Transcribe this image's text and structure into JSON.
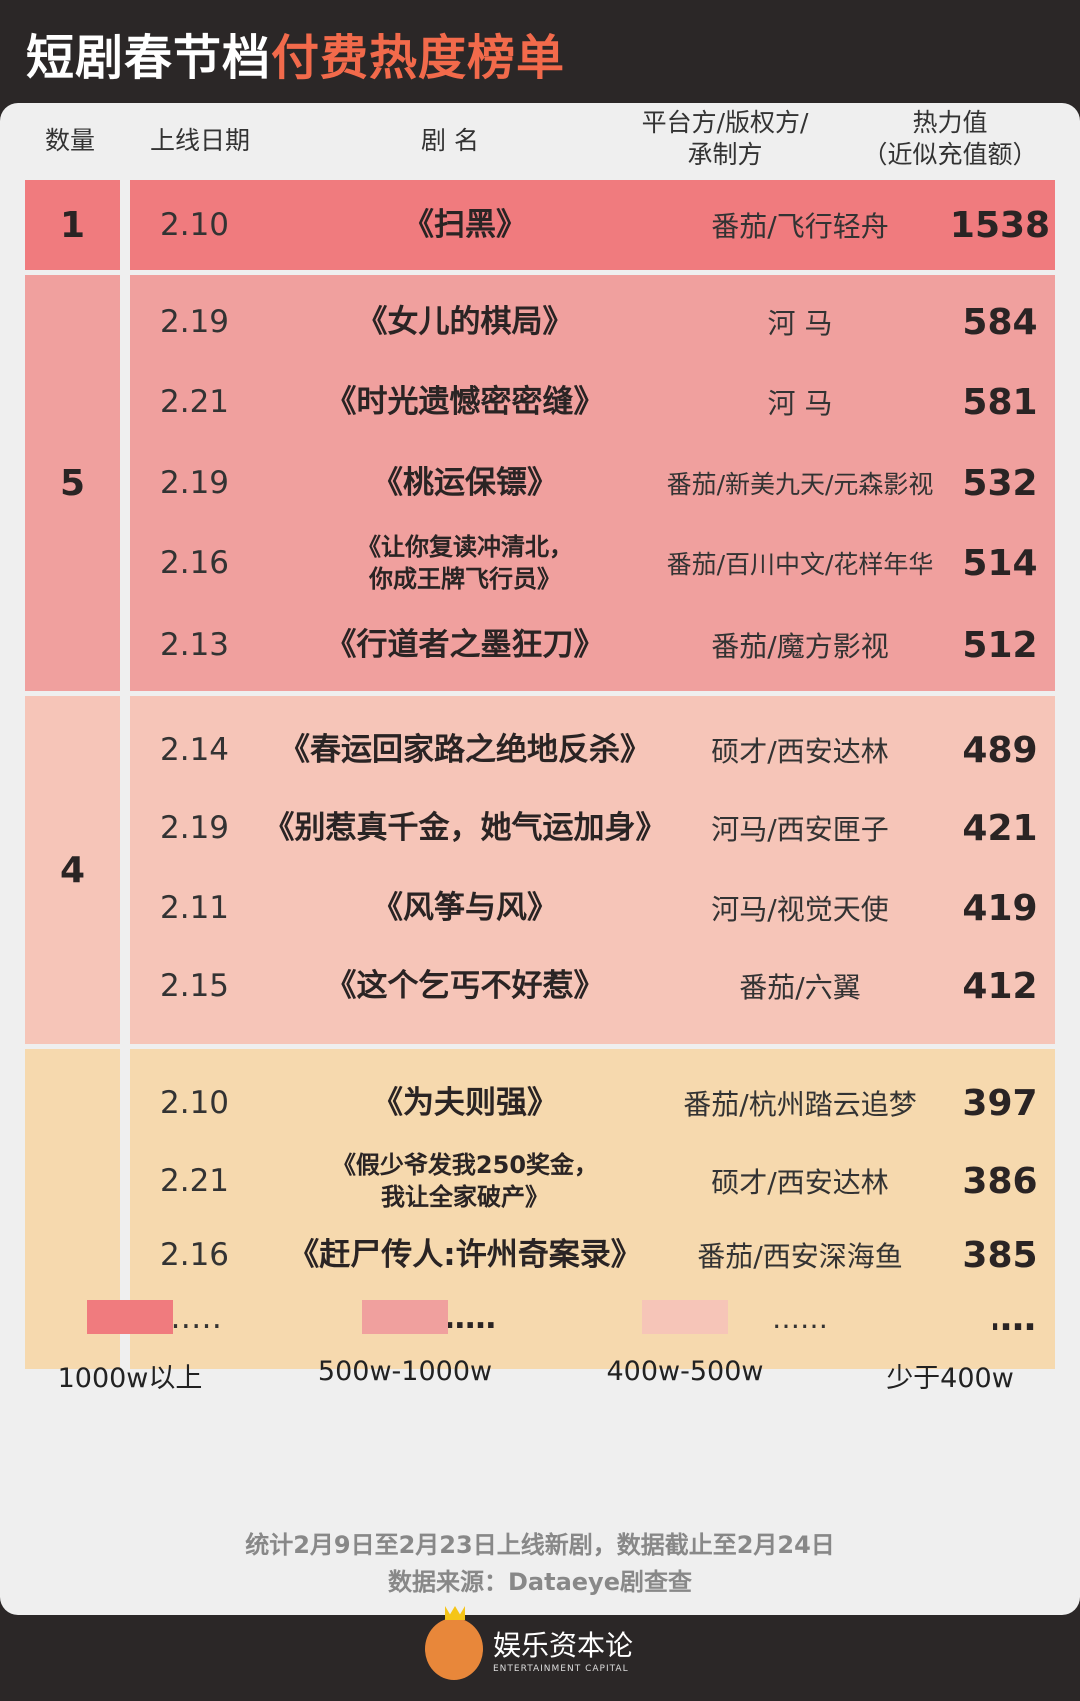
{
  "title": {
    "main": "短剧春节档",
    "accent": "付费热度榜单"
  },
  "headers": {
    "count": "数量",
    "date": "上线日期",
    "name": "剧 名",
    "platform_1": "平台方/版权方/",
    "platform_2": "承制方",
    "value_1": "热力值",
    "value_2": "（近似充值额）"
  },
  "groups": [
    {
      "count": "1",
      "color": "#f07b7e",
      "rows": [
        {
          "date": "2.10",
          "name": "《扫黑》",
          "platform": "番茄/飞行轻舟",
          "value": "1538"
        }
      ]
    },
    {
      "count": "5",
      "color": "#f0a09e",
      "rows": [
        {
          "date": "2.19",
          "name": "《女儿的棋局》",
          "platform": "河 马",
          "value": "584"
        },
        {
          "date": "2.21",
          "name": "《时光遗憾密密缝》",
          "platform": "河 马",
          "value": "581"
        },
        {
          "date": "2.19",
          "name": "《桃运保镖》",
          "platform": "番茄/新美九天/元森影视",
          "value": "532"
        },
        {
          "date": "2.16",
          "name": "《让你复读冲清北，",
          "name2": "你成王牌飞行员》",
          "platform": "番茄/百川中文/花样年华",
          "value": "514"
        },
        {
          "date": "2.13",
          "name": "《行道者之墨狂刀》",
          "platform": "番茄/魔方影视",
          "value": "512"
        }
      ]
    },
    {
      "count": "4",
      "color": "#f6c5b8",
      "rows": [
        {
          "date": "2.14",
          "name": "《春运回家路之绝地反杀》",
          "platform": "硕才/西安达林",
          "value": "489"
        },
        {
          "date": "2.19",
          "name": "《别惹真千金，她气运加身》",
          "platform": "河马/西安匣子",
          "value": "421"
        },
        {
          "date": "2.11",
          "name": "《风筝与风》",
          "platform": "河马/视觉天使",
          "value": "419"
        },
        {
          "date": "2.15",
          "name": "《这个乞丐不好惹》",
          "platform": "番茄/六翼",
          "value": "412"
        }
      ]
    },
    {
      "count": "",
      "color": "#f6d9ae",
      "rows": [
        {
          "date": "2.10",
          "name": "《为夫则强》",
          "platform": "番茄/杭州踏云追梦",
          "value": "397"
        },
        {
          "date": "2.21",
          "name": "《假少爷发我250奖金，",
          "name2": "我让全家破产》",
          "platform": "硕才/西安达林",
          "value": "386"
        },
        {
          "date": "2.16",
          "name": "《赶尸传人:许州奇案录》",
          "platform": "番茄/西安深海鱼",
          "value": "385"
        },
        {
          "date": "……",
          "name": "……",
          "platform": "……",
          "value": "……"
        }
      ]
    }
  ],
  "legend": [
    {
      "label": "1000w以上",
      "color": "#f07b7e"
    },
    {
      "label": "500w-1000w",
      "color": "#f0a09e"
    },
    {
      "label": "400w-500w",
      "color": "#f6c5b8"
    },
    {
      "label": "少于400w",
      "color": "#f6d9ae"
    }
  ],
  "notes": {
    "period": "统计2月9日至2月23日上线新剧，数据截止至2月24日",
    "source": "数据来源：Dataeye剧查查"
  },
  "logo": {
    "name": "娱乐资本论",
    "sub": "ENTERTAINMENT CAPITAL"
  }
}
